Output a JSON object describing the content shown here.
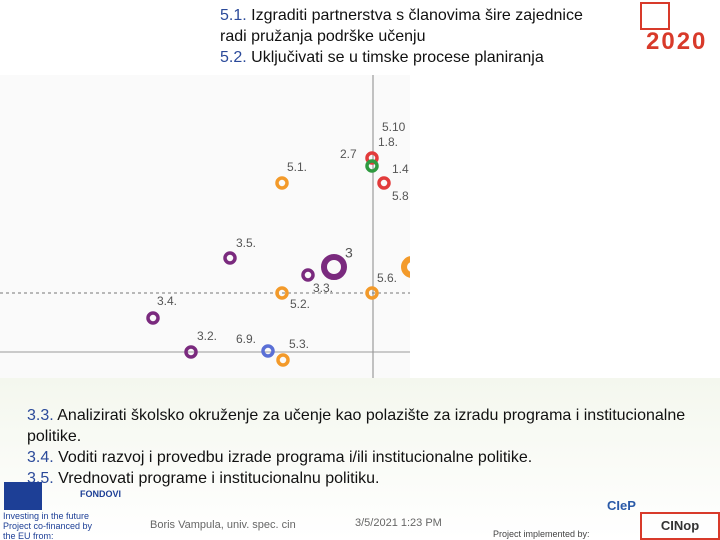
{
  "top": {
    "items": [
      {
        "code": "5.1.",
        "text": "Izgraditi partnerstva s članovima šire zajednice radi pružanja podrške učenju"
      },
      {
        "code": "5.2.",
        "text": "Uključivati se u timske procese planiranja"
      }
    ]
  },
  "logo": {
    "year": "2020"
  },
  "nodes": [
    {
      "label": "5.10"
    },
    {
      "label": "1.8."
    },
    {
      "label": "2.7"
    },
    {
      "label": "1.4"
    },
    {
      "label": "5.8"
    },
    {
      "label": "5.1."
    },
    {
      "label": "3.5."
    },
    {
      "label": "3"
    },
    {
      "label": "3.3."
    },
    {
      "label": "5.6."
    },
    {
      "label": "5.2."
    },
    {
      "label": "3.4."
    },
    {
      "label": "3.2."
    },
    {
      "label": "6.9."
    },
    {
      "label": "5.3."
    }
  ],
  "bottom": {
    "items": [
      {
        "code": "3.3.",
        "text": "Analizirati školsko okruženje za učenje kao polazište za izradu programa i institucionalne politike."
      },
      {
        "code": "3.4.",
        "text": "Voditi razvoj i provedbu izrade programa i/ili institucionalne politike."
      },
      {
        "code": "3.5.",
        "text": "Vrednovati programe i institucionalnu politiku."
      }
    ]
  },
  "footer": {
    "fondovi": "FONDOVI",
    "eu": "Investing in the future Project co-financed by the EU from:",
    "author": "Boris Vampula, univ. spec. cin",
    "date": "3/5/2021 1:23 PM",
    "implemented": "Project implemented by:",
    "cinop": "CINop",
    "ciep": "CIeP"
  }
}
